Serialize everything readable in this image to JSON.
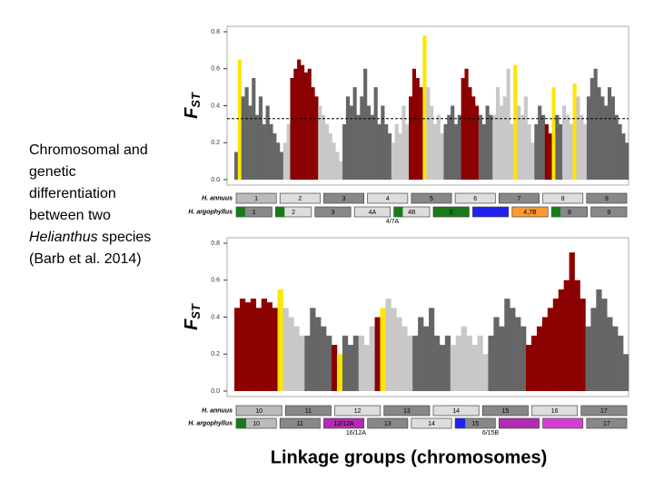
{
  "caption": {
    "before": "Chromosomal and genetic differentiation between two ",
    "italic": "Helianthus",
    "after": " species (Barb et al. 2014)"
  },
  "chart_data": [
    {
      "type": "bar",
      "ylabel": "F",
      "ylabel_sub": "ST",
      "ylim": [
        0,
        0.8
      ],
      "yticks": [
        {
          "value": 0,
          "label": "0.0"
        },
        0.2,
        0.4,
        0.6,
        0.8
      ],
      "threshold": 0.33,
      "groups": [
        {
          "segments": [
            {
              "color": "#666666",
              "values": [
                0.15
              ]
            },
            {
              "color": "#ffe600",
              "values": [
                0.65
              ]
            },
            {
              "color": "#666666",
              "values": [
                0.45,
                0.5,
                0.4,
                0.55,
                0.35,
                0.45,
                0.3,
                0.4,
                0.3,
                0.25,
                0.2,
                0.15
              ]
            }
          ]
        },
        {
          "segments": [
            {
              "color": "#c8c8c8",
              "values": [
                0.2,
                0.3
              ]
            },
            {
              "color": "#8b0000",
              "values": [
                0.55,
                0.6,
                0.65,
                0.62,
                0.58,
                0.6,
                0.5,
                0.45
              ]
            },
            {
              "color": "#c8c8c8",
              "values": [
                0.4,
                0.35,
                0.3,
                0.25,
                0.2,
                0.15,
                0.1
              ]
            }
          ]
        },
        {
          "segments": [
            {
              "color": "#666666",
              "values": [
                0.3,
                0.45,
                0.4,
                0.5,
                0.35,
                0.45,
                0.6,
                0.4,
                0.35,
                0.5,
                0.3,
                0.4,
                0.3,
                0.25
              ]
            }
          ]
        },
        {
          "segments": [
            {
              "color": "#c8c8c8",
              "values": [
                0.2,
                0.3,
                0.25,
                0.4,
                0.3
              ]
            },
            {
              "color": "#8b0000",
              "values": [
                0.45,
                0.6,
                0.55,
                0.5
              ]
            },
            {
              "color": "#ffe600",
              "values": [
                0.78
              ]
            },
            {
              "color": "#c8c8c8",
              "values": [
                0.5,
                0.4,
                0.3,
                0.35,
                0.25
              ]
            }
          ]
        },
        {
          "segments": [
            {
              "color": "#666666",
              "values": [
                0.3,
                0.35,
                0.4,
                0.3,
                0.35
              ]
            },
            {
              "color": "#8b0000",
              "values": [
                0.55,
                0.6,
                0.5,
                0.45,
                0.4
              ]
            },
            {
              "color": "#666666",
              "values": [
                0.35,
                0.3,
                0.4,
                0.35
              ]
            }
          ]
        },
        {
          "segments": [
            {
              "color": "#c8c8c8",
              "values": [
                0.35,
                0.5,
                0.4,
                0.45,
                0.6,
                0.3
              ]
            },
            {
              "color": "#ffe600",
              "values": [
                0.62
              ]
            },
            {
              "color": "#c8c8c8",
              "values": [
                0.4,
                0.35,
                0.45,
                0.3,
                0.2
              ]
            }
          ]
        },
        {
          "segments": [
            {
              "color": "#666666",
              "values": [
                0.3,
                0.4,
                0.35
              ]
            },
            {
              "color": "#8b0000",
              "values": [
                0.3,
                0.25
              ]
            },
            {
              "color": "#ffe600",
              "values": [
                0.5
              ]
            },
            {
              "color": "#666666",
              "values": [
                0.35,
                0.3
              ]
            }
          ]
        },
        {
          "segments": [
            {
              "color": "#c8c8c8",
              "values": [
                0.4,
                0.35,
                0.3
              ]
            },
            {
              "color": "#ffe600",
              "values": [
                0.52
              ]
            },
            {
              "color": "#c8c8c8",
              "values": [
                0.45,
                0.35,
                0.3
              ]
            }
          ]
        },
        {
          "segments": [
            {
              "color": "#666666",
              "values": [
                0.45,
                0.55,
                0.6,
                0.5,
                0.45,
                0.4,
                0.5,
                0.45,
                0.35,
                0.3,
                0.25,
                0.2
              ]
            }
          ]
        }
      ],
      "tracks": [
        {
          "label": "H. annuus",
          "boxes": [
            {
              "label": "1",
              "color": "#bbbbbb"
            },
            {
              "label": "2",
              "color": "#dddddd"
            },
            {
              "label": "3",
              "color": "#888888"
            },
            {
              "label": "4",
              "color": "#dddddd"
            },
            {
              "label": "5",
              "color": "#888888"
            },
            {
              "label": "6",
              "color": "#dddddd"
            },
            {
              "label": "7",
              "color": "#888888"
            },
            {
              "label": "8",
              "color": "#dddddd"
            },
            {
              "label": "9",
              "color": "#888888"
            }
          ]
        },
        {
          "label": "H. argophyllus",
          "boxes": [
            {
              "label": "1",
              "color": "#888888",
              "accent": "#1a7a1a"
            },
            {
              "label": "2",
              "color": "#dddddd",
              "accent": "#1a7a1a"
            },
            {
              "label": "3",
              "color": "#888888"
            },
            {
              "label": "4A",
              "color": "#dddddd"
            },
            {
              "label": "4B",
              "color": "#dddddd",
              "accent": "#1a7a1a"
            },
            {
              "label": "5",
              "color": "#1a7a1a"
            },
            {
              "color": "#2222ee"
            },
            {
              "label": "4,7B",
              "color": "#ff9933"
            },
            {
              "label": "8",
              "color": "#888888",
              "accent": "#1a7a1a"
            },
            {
              "label": "9",
              "color": "#888888"
            }
          ]
        }
      ],
      "annotations": [
        "4/7A"
      ]
    },
    {
      "type": "bar",
      "ylabel": "F",
      "ylabel_sub": "ST",
      "ylim": [
        0,
        0.8
      ],
      "yticks": [
        {
          "value": 0,
          "label": "0.0"
        },
        0.2,
        0.4,
        0.6,
        0.8
      ],
      "groups": [
        {
          "segments": [
            {
              "color": "#8b0000",
              "values": [
                0.45,
                0.5,
                0.48,
                0.5,
                0.45,
                0.5,
                0.48,
                0.45
              ]
            },
            {
              "color": "#ffe600",
              "values": [
                0.55
              ]
            },
            {
              "color": "#c8c8c8",
              "values": [
                0.45,
                0.4,
                0.35,
                0.3
              ]
            }
          ]
        },
        {
          "segments": [
            {
              "color": "#666666",
              "values": [
                0.3,
                0.45,
                0.4,
                0.35,
                0.3
              ]
            },
            {
              "color": "#8b0000",
              "values": [
                0.25
              ]
            },
            {
              "color": "#ffe600",
              "values": [
                0.2
              ]
            },
            {
              "color": "#666666",
              "values": [
                0.3,
                0.25,
                0.3
              ]
            }
          ]
        },
        {
          "segments": [
            {
              "color": "#c8c8c8",
              "values": [
                0.3,
                0.25,
                0.35
              ]
            },
            {
              "color": "#8b0000",
              "values": [
                0.4
              ]
            },
            {
              "color": "#ffe600",
              "values": [
                0.45
              ]
            },
            {
              "color": "#c8c8c8",
              "values": [
                0.5,
                0.45,
                0.4,
                0.35,
                0.3
              ]
            }
          ]
        },
        {
          "segments": [
            {
              "color": "#666666",
              "values": [
                0.3,
                0.4,
                0.35,
                0.45,
                0.3,
                0.25,
                0.3
              ]
            }
          ]
        },
        {
          "segments": [
            {
              "color": "#c8c8c8",
              "values": [
                0.25,
                0.3,
                0.35,
                0.3,
                0.25,
                0.3,
                0.2
              ]
            }
          ]
        },
        {
          "segments": [
            {
              "color": "#666666",
              "values": [
                0.3,
                0.4,
                0.35,
                0.5,
                0.45,
                0.4,
                0.35
              ]
            }
          ]
        },
        {
          "segments": [
            {
              "color": "#8b0000",
              "values": [
                0.25,
                0.3,
                0.35,
                0.4,
                0.45,
                0.5,
                0.55,
                0.6,
                0.75,
                0.6,
                0.5
              ]
            }
          ]
        },
        {
          "segments": [
            {
              "color": "#666666",
              "values": [
                0.35,
                0.45,
                0.55,
                0.5,
                0.4,
                0.35,
                0.3,
                0.2
              ]
            }
          ]
        }
      ],
      "tracks": [
        {
          "label": "H. annuus",
          "boxes": [
            {
              "label": "10",
              "color": "#bbbbbb"
            },
            {
              "label": "11",
              "color": "#888888"
            },
            {
              "label": "12",
              "color": "#dddddd"
            },
            {
              "label": "13",
              "color": "#888888"
            },
            {
              "label": "14",
              "color": "#dddddd"
            },
            {
              "label": "15",
              "color": "#888888"
            },
            {
              "label": "16",
              "color": "#dddddd"
            },
            {
              "label": "17",
              "color": "#888888"
            }
          ]
        },
        {
          "label": "H. argophyllus",
          "boxes": [
            {
              "label": "10",
              "color": "#bbbbbb",
              "accent": "#1a7a1a"
            },
            {
              "label": "11",
              "color": "#888888"
            },
            {
              "label": "12/12A",
              "color": "#b02cb0"
            },
            {
              "label": "13",
              "color": "#888888"
            },
            {
              "label": "14",
              "color": "#dddddd"
            },
            {
              "label": "15",
              "color": "#888888",
              "accent": "#2222ee"
            },
            {
              "color": "#b02cb0"
            },
            {
              "color": "#d040d0"
            },
            {
              "label": "17",
              "color": "#888888"
            }
          ]
        }
      ],
      "annotations": [
        "16/12A",
        "6/15B"
      ],
      "xlabel": "Linkage groups (chromosomes)"
    }
  ]
}
